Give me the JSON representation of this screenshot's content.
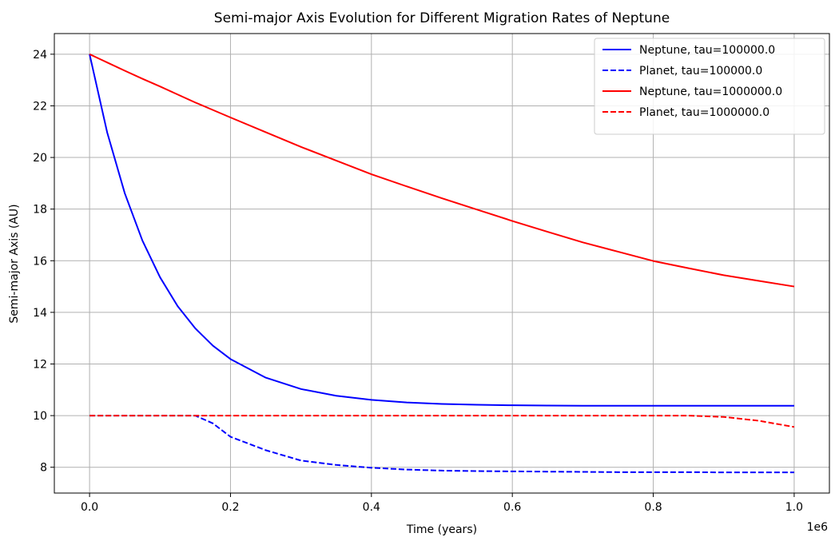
{
  "chart_data": {
    "type": "line",
    "title": "Semi-major Axis Evolution for Different Migration Rates of Neptune",
    "xlabel": "Time (years)",
    "ylabel": "Semi-major Axis (AU)",
    "x_offset_label": "1e6",
    "xlim": [
      -0.05,
      1.05
    ],
    "ylim": [
      7,
      24.8
    ],
    "xticks": [
      0.0,
      0.2,
      0.4,
      0.6,
      0.8,
      1.0
    ],
    "xtick_labels": [
      "0.0",
      "0.2",
      "0.4",
      "0.6",
      "0.8",
      "1.0"
    ],
    "yticks": [
      8,
      10,
      12,
      14,
      16,
      18,
      20,
      22,
      24
    ],
    "ytick_labels": [
      "8",
      "10",
      "12",
      "14",
      "16",
      "18",
      "20",
      "22",
      "24"
    ],
    "grid": true,
    "legend_position": "top-right",
    "x": [
      0.0,
      0.025,
      0.05,
      0.075,
      0.1,
      0.125,
      0.15,
      0.175,
      0.2,
      0.25,
      0.3,
      0.35,
      0.4,
      0.45,
      0.5,
      0.55,
      0.6,
      0.65,
      0.7,
      0.75,
      0.8,
      0.85,
      0.9,
      0.95,
      1.0
    ],
    "series": [
      {
        "name": "Neptune, tau=100000.0",
        "color": "#0000ff",
        "dash": "solid",
        "values": [
          24.0,
          20.97,
          18.61,
          16.78,
          15.36,
          14.24,
          13.38,
          12.71,
          12.19,
          11.47,
          11.03,
          10.77,
          10.61,
          10.51,
          10.45,
          10.42,
          10.4,
          10.39,
          10.38,
          10.38,
          10.38,
          10.38,
          10.38,
          10.38,
          10.38
        ]
      },
      {
        "name": "Planet, tau=100000.0",
        "color": "#0000ff",
        "dash": "dashed",
        "values": [
          10.0,
          10.0,
          10.0,
          10.0,
          10.0,
          10.0,
          10.0,
          9.7,
          9.18,
          8.66,
          8.26,
          8.09,
          7.98,
          7.91,
          7.87,
          7.85,
          7.84,
          7.83,
          7.82,
          7.81,
          7.81,
          7.81,
          7.8,
          7.8,
          7.8
        ]
      },
      {
        "name": "Neptune, tau=1000000.0",
        "color": "#ff0000",
        "dash": "solid",
        "values": [
          24.0,
          23.68,
          23.36,
          23.05,
          22.75,
          22.44,
          22.13,
          21.84,
          21.55,
          20.98,
          20.41,
          19.88,
          19.35,
          18.88,
          18.42,
          17.98,
          17.54,
          17.12,
          16.71,
          16.35,
          15.99,
          15.71,
          15.44,
          15.22,
          15.0
        ]
      },
      {
        "name": "Planet, tau=1000000.0",
        "color": "#ff0000",
        "dash": "dashed",
        "values": [
          10.0,
          10.0,
          10.0,
          10.0,
          10.0,
          10.0,
          10.0,
          10.0,
          10.0,
          10.0,
          10.0,
          10.0,
          10.0,
          10.0,
          10.0,
          10.0,
          10.0,
          10.0,
          10.0,
          10.0,
          10.0,
          10.0,
          9.95,
          9.8,
          9.56
        ]
      }
    ]
  }
}
